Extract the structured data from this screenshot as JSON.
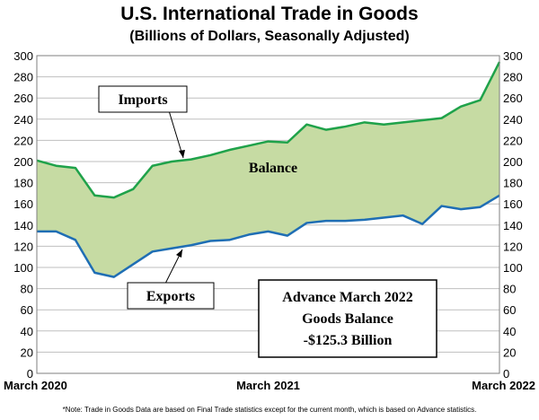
{
  "title": "U.S. International Trade in Goods",
  "subtitle": "(Billions of Dollars, Seasonally Adjusted)",
  "note": "*Note: Trade in Goods Data are based on Final Trade statistics except for the current month, which is based on Advance statistics.",
  "annotation": {
    "imports": "Imports",
    "exports": "Exports",
    "balance": "Balance",
    "box_line1": "Advance March 2022",
    "box_line2": "Goods Balance",
    "box_line3": "-$125.3 Billion"
  },
  "colors": {
    "imports": "#1fa24a",
    "exports": "#1f6eb4",
    "balance_fill": "#c6dba3",
    "grid": "#bfbfbf"
  },
  "chart_data": {
    "type": "area",
    "title": "U.S. International Trade in Goods",
    "subtitle": "(Billions of Dollars, Seasonally Adjusted)",
    "xlabel": "",
    "ylabel": "",
    "ylim": [
      0,
      300
    ],
    "yticks": [
      0,
      20,
      40,
      60,
      80,
      100,
      120,
      140,
      160,
      180,
      200,
      220,
      240,
      260,
      280,
      300
    ],
    "grid": true,
    "x_tick_labels": [
      {
        "index": 0,
        "label": "March 2020"
      },
      {
        "index": 12,
        "label": "March 2021"
      },
      {
        "index": 24,
        "label": "March 2022"
      }
    ],
    "x": [
      "Mar 2020",
      "Apr 2020",
      "May 2020",
      "Jun 2020",
      "Jul 2020",
      "Aug 2020",
      "Sep 2020",
      "Oct 2020",
      "Nov 2020",
      "Dec 2020",
      "Jan 2021",
      "Feb 2021",
      "Mar 2021",
      "Apr 2021",
      "May 2021",
      "Jun 2021",
      "Jul 2021",
      "Aug 2021",
      "Sep 2021",
      "Oct 2021",
      "Nov 2021",
      "Dec 2021",
      "Jan 2022",
      "Feb 2022",
      "Mar 2022"
    ],
    "series": [
      {
        "name": "Imports",
        "values": [
          201,
          196,
          194,
          168,
          166,
          174,
          196,
          200,
          202,
          206,
          211,
          215,
          219,
          218,
          235,
          230,
          233,
          237,
          235,
          237,
          239,
          241,
          252,
          258,
          294
        ]
      },
      {
        "name": "Exports",
        "values": [
          134,
          134,
          126,
          95,
          91,
          103,
          115,
          118,
          121,
          125,
          126,
          131,
          134,
          130,
          142,
          144,
          144,
          145,
          147,
          149,
          141,
          158,
          155,
          157,
          168
        ]
      }
    ],
    "fill_between": {
      "name": "Balance"
    }
  }
}
